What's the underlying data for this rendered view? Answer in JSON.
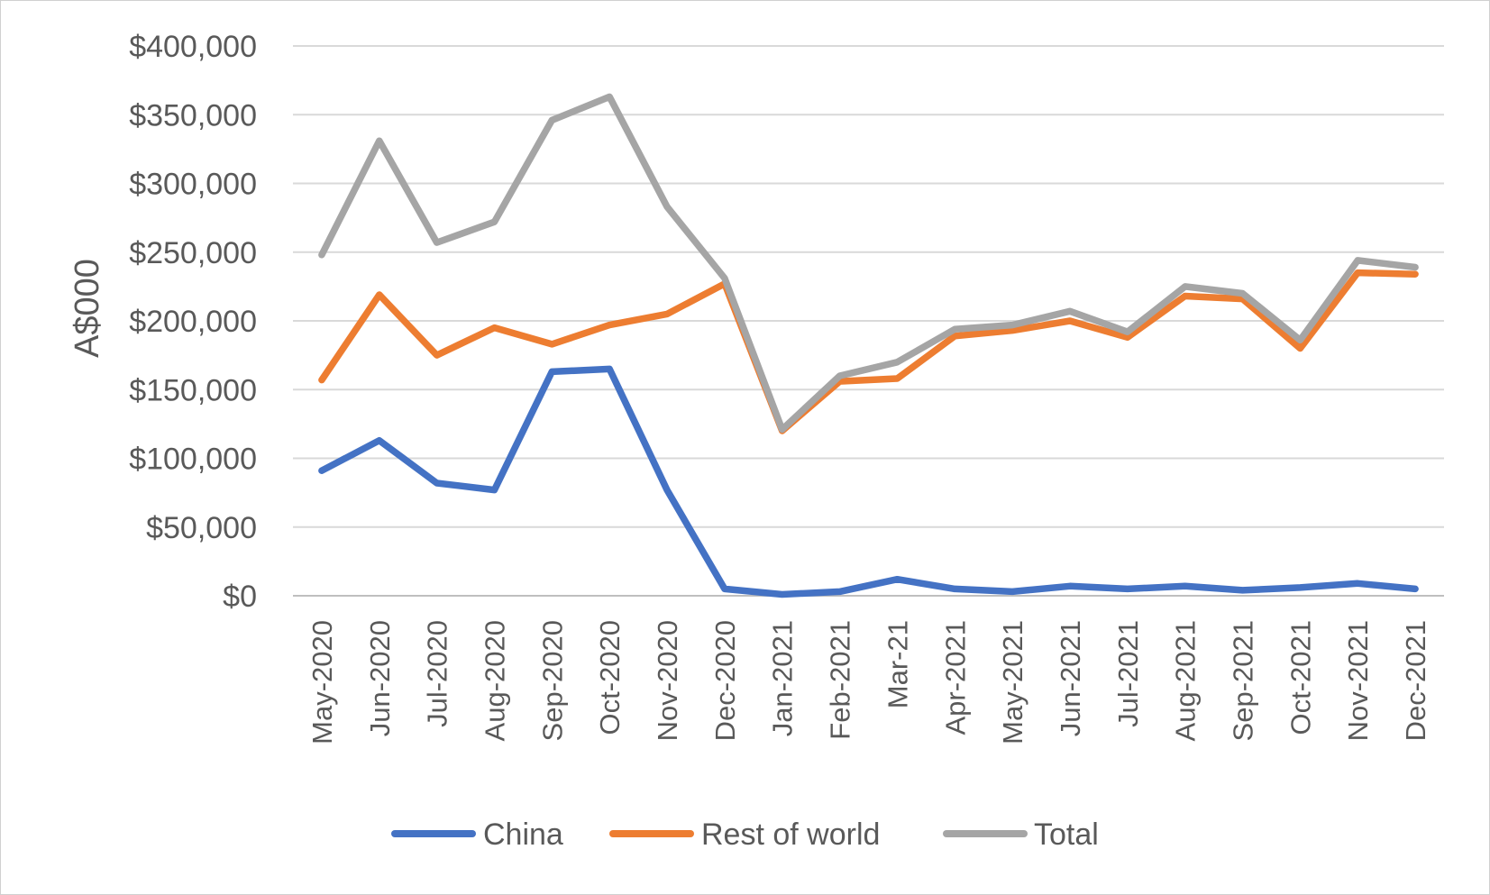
{
  "chart_data": {
    "type": "line",
    "title": "",
    "xlabel": "",
    "ylabel": "A$000",
    "ylim": [
      0,
      400000
    ],
    "y_ticks": [
      "$0",
      "$50,000",
      "$100,000",
      "$150,000",
      "$200,000",
      "$250,000",
      "$300,000",
      "$350,000",
      "$400,000"
    ],
    "y_tick_values": [
      0,
      50000,
      100000,
      150000,
      200000,
      250000,
      300000,
      350000,
      400000
    ],
    "grid": true,
    "legend_position": "bottom",
    "categories": [
      "May-2020",
      "Jun-2020",
      "Jul-2020",
      "Aug-2020",
      "Sep-2020",
      "Oct-2020",
      "Nov-2020",
      "Dec-2020",
      "Jan-2021",
      "Feb-2021",
      "Mar-21",
      "Apr-2021",
      "May-2021",
      "Jun-2021",
      "Jul-2021",
      "Aug-2021",
      "Sep-2021",
      "Oct-2021",
      "Nov-2021",
      "Dec-2021"
    ],
    "series": [
      {
        "name": "China",
        "color": "#4472C4",
        "values": [
          91000,
          113000,
          82000,
          77000,
          163000,
          165000,
          77000,
          5000,
          1000,
          3000,
          12000,
          5000,
          3000,
          7000,
          5000,
          7000,
          4000,
          6000,
          9000,
          5000
        ]
      },
      {
        "name": "Rest of world",
        "color": "#ED7D31",
        "values": [
          157000,
          219000,
          175000,
          195000,
          183000,
          197000,
          205000,
          227000,
          120000,
          156000,
          158000,
          189000,
          193000,
          200000,
          188000,
          218000,
          216000,
          180000,
          235000,
          234000
        ]
      },
      {
        "name": "Total",
        "color": "#A5A5A5",
        "values": [
          248000,
          331000,
          257000,
          272000,
          346000,
          363000,
          283000,
          231000,
          121000,
          160000,
          170000,
          194000,
          197000,
          207000,
          192000,
          225000,
          220000,
          186000,
          244000,
          239000
        ]
      }
    ]
  }
}
